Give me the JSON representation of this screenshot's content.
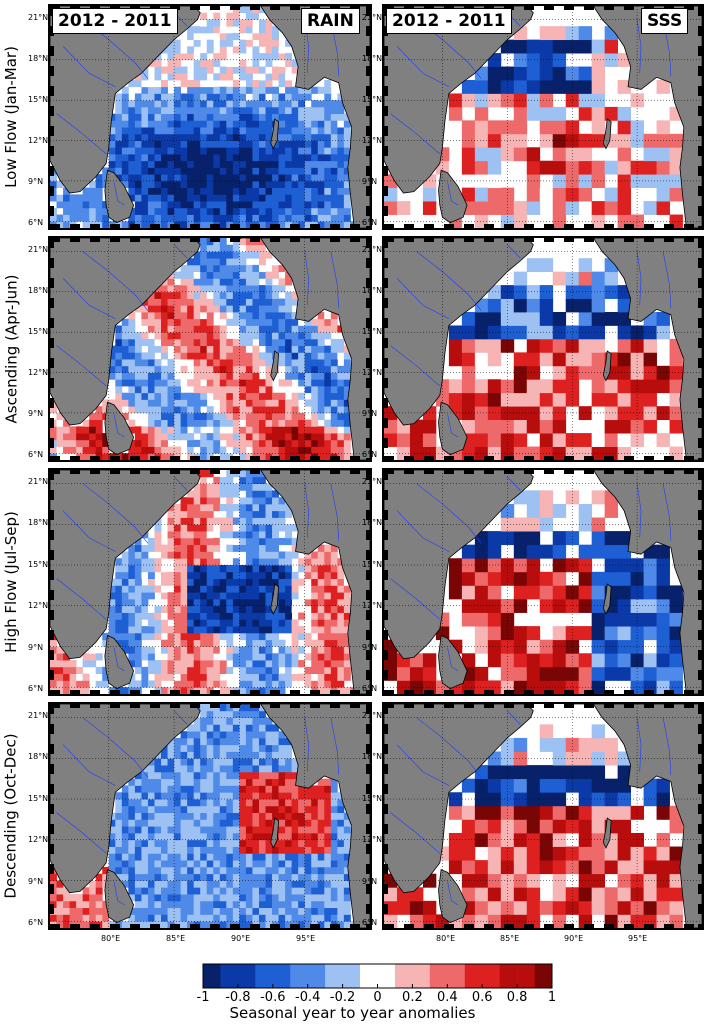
{
  "chart_data": {
    "type": "heatmap",
    "title": "",
    "columns": [
      {
        "difference_label": "2012 - 2011",
        "variable_label": "RAIN"
      },
      {
        "difference_label": "2012 - 2011",
        "variable_label": "SSS"
      }
    ],
    "rows": [
      {
        "label": "Low Flow (Jan-Mar)"
      },
      {
        "label": "Ascending (Apr-Jun)"
      },
      {
        "label": "High Flow (Jul-Sep)"
      },
      {
        "label": "Descending (Oct-Dec)"
      }
    ],
    "lat_ticks": [
      "21°N",
      "18°N",
      "15°N",
      "12°N",
      "9°N",
      "6°N"
    ],
    "lon_ticks": [
      "80°E",
      "85°E",
      "90°E",
      "95°E"
    ],
    "lat_range": [
      5.5,
      22
    ],
    "lon_range": [
      75.5,
      100
    ],
    "colorbar": {
      "ticks": [
        "-1",
        "-0.8",
        "-0.6",
        "-0.4",
        "-0.2",
        "0",
        "0.2",
        "0.4",
        "0.6",
        "0.8",
        "1"
      ],
      "range": [
        -1,
        1
      ],
      "label": "Seasonal year to year anomalies",
      "colors": [
        "#08216b",
        "#0b3aa8",
        "#1f5fd4",
        "#4f8ae8",
        "#9cc1f2",
        "#ffffff",
        "#f6b4b4",
        "#ee6a6a",
        "#dd2020",
        "#b80d0d",
        "#7a0505"
      ]
    },
    "land_color": "#808080",
    "ocean_color": "#ffffff",
    "grid": true
  }
}
